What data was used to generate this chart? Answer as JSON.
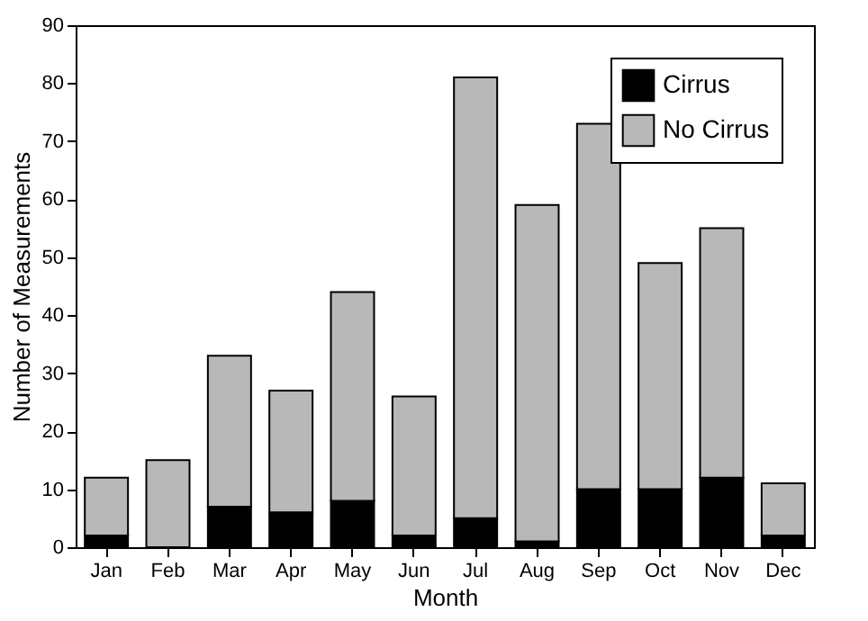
{
  "chart_data": {
    "type": "bar",
    "stacked": true,
    "xlabel": "Month",
    "ylabel": "Number of Measurements",
    "categories": [
      "Jan",
      "Feb",
      "Mar",
      "Apr",
      "May",
      "Jun",
      "Jul",
      "Aug",
      "Sep",
      "Oct",
      "Nov",
      "Dec"
    ],
    "series": [
      {
        "name": "Cirrus",
        "color": "#000000",
        "values": [
          2,
          0,
          7,
          6,
          8,
          2,
          5,
          1,
          10,
          10,
          12,
          2
        ]
      },
      {
        "name": "No Cirrus",
        "color": "#b8b8b8",
        "values": [
          10,
          15,
          26,
          21,
          36,
          24,
          76,
          58,
          63,
          39,
          43,
          9
        ]
      }
    ],
    "ylim": [
      0,
      90
    ],
    "yticks": [
      0,
      10,
      20,
      30,
      40,
      50,
      60,
      70,
      80,
      90
    ],
    "grid": false,
    "legend": "top right"
  }
}
